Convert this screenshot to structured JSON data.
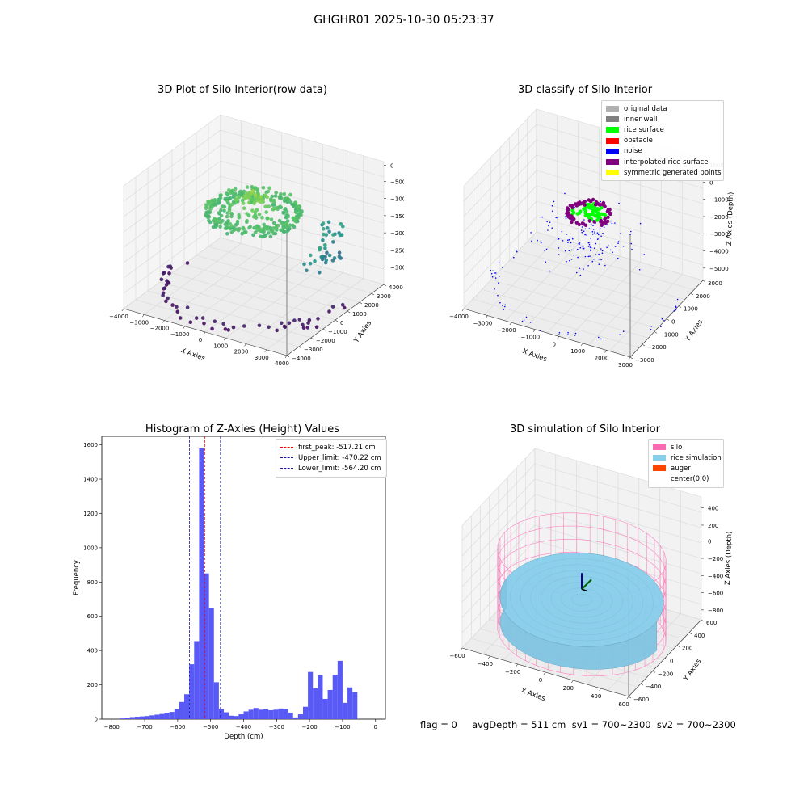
{
  "suptitle": "GHGHR01 2025-10-30 05:23:37",
  "panels": {
    "raw": {
      "title": "3D Plot of Silo Interior(row data)",
      "xlabel": "X Axies",
      "ylabel": "Y Axies",
      "zlabel": "Z Axies (Depth)",
      "x_ticks": [
        "−4000",
        "−3000",
        "−2000",
        "−1000",
        "0",
        "1000",
        "2000",
        "3000",
        "4000"
      ],
      "y_ticks": [
        "−4000",
        "−3000",
        "−2000",
        "−1000",
        "0",
        "1000",
        "2000",
        "3000",
        "4000"
      ],
      "z_ticks": [
        "0",
        "−500",
        "−1000",
        "−1500",
        "−2000",
        "−2500",
        "−3000"
      ]
    },
    "classify": {
      "title": "3D classify of Silo Interior",
      "xlabel": "X Axies",
      "ylabel": "Y Axies",
      "zlabel": "Z Axies (Depth)",
      "x_ticks": [
        "−4000",
        "−3000",
        "−2000",
        "−1000",
        "0",
        "1000",
        "2000",
        "3000"
      ],
      "y_ticks": [
        "−3000",
        "−2000",
        "−1000",
        "0",
        "1000",
        "2000",
        "3000"
      ],
      "z_ticks": [
        "1000",
        "0",
        "−1000",
        "−2000",
        "−3000",
        "−4000",
        "−5000"
      ],
      "legend": [
        {
          "label": "original data",
          "color": "#b0b0b0"
        },
        {
          "label": "inner wall",
          "color": "#808080"
        },
        {
          "label": "rice surface",
          "color": "#00ff00"
        },
        {
          "label": "obstacle",
          "color": "#ff0000"
        },
        {
          "label": "noise",
          "color": "#0000ff"
        },
        {
          "label": "interpolated rice surface",
          "color": "#800080"
        },
        {
          "label": "symmetric generated points",
          "color": "#ffff00"
        }
      ]
    },
    "histogram": {
      "title": "Histogram of Z-Axies (Height) Values",
      "xlabel": "Depth (cm)",
      "ylabel": "Frequency"
    },
    "simulation": {
      "title": "3D simulation of Silo Interior",
      "xlabel": "X Axies",
      "ylabel": "Y Axies",
      "zlabel": "Z Axies (Depth)",
      "x_ticks": [
        "−600",
        "−400",
        "−200",
        "0",
        "200",
        "400",
        "600"
      ],
      "y_ticks": [
        "−600",
        "−400",
        "−200",
        "0",
        "200",
        "400",
        "600"
      ],
      "z_ticks": [
        "400",
        "200",
        "0",
        "−200",
        "−400",
        "−600",
        "−800"
      ],
      "legend": [
        {
          "label": "silo",
          "color": "#ff69b4"
        },
        {
          "label": "rice simulation",
          "color": "#87ceeb"
        },
        {
          "label": "auger",
          "color": "#ff4500"
        },
        {
          "label": "center(0,0)",
          "color": ""
        }
      ]
    }
  },
  "status_text": "flag = 0     avgDepth = 511 cm  sv1 = 700~2300  sv2 = 700~2300",
  "colors": {
    "bar": "#5050f5",
    "first_peak": "#ff0000",
    "limits": "#1a1aa0",
    "viridis": [
      "#440154",
      "#3b528b",
      "#21918c",
      "#5ec962",
      "#fde725"
    ]
  },
  "chart_data": [
    {
      "type": "scatter",
      "title": "3D Plot of Silo Interior(row data)",
      "xlabel": "X Axies",
      "ylabel": "Y Axies",
      "zlabel": "Z Axies (Depth)",
      "xlim": [
        -4000,
        4000
      ],
      "ylim": [
        -4000,
        4000
      ],
      "zlim": [
        -3200,
        0
      ],
      "colormap": "viridis",
      "clusters": [
        {
          "name": "",
          "shape": "ring",
          "cx": 0,
          "cy": 0,
          "r": 4000,
          "z": -3000,
          "count": 95
        },
        {
          "name": "",
          "shape": "ring",
          "cx": 0,
          "cy": 0,
          "r": 2000,
          "z": -1000,
          "count": 220
        },
        {
          "name": "",
          "shape": "disk",
          "cx": 0,
          "cy": 0,
          "r": 1500,
          "z": -500,
          "count": 160
        },
        {
          "name": "",
          "shape": "arc",
          "cx": 0,
          "cy": 0,
          "r": 3600,
          "z": -1700,
          "count": 40
        }
      ]
    },
    {
      "type": "scatter",
      "title": "3D classify of Silo Interior",
      "xlabel": "X Axies",
      "ylabel": "Y Axies",
      "zlabel": "Z Axies (Depth)",
      "xlim": [
        -4000,
        3500
      ],
      "ylim": [
        -3500,
        3500
      ],
      "zlim": [
        -5000,
        1500
      ],
      "series": [
        {
          "name": "noise",
          "shape": "ring",
          "r": 4000,
          "z": -4500,
          "count": 80
        },
        {
          "name": "noise",
          "shape": "scatter",
          "r": 2500,
          "z": -2000,
          "count": 140
        },
        {
          "name": "rice surface",
          "shape": "disk",
          "r": 700,
          "z": -500,
          "count": 60
        },
        {
          "name": "interpolated rice surface",
          "shape": "ring",
          "r": 900,
          "z": -600,
          "count": 70
        }
      ]
    },
    {
      "type": "bar",
      "title": "Histogram of Z-Axies (Height) Values",
      "xlabel": "Depth (cm)",
      "ylabel": "Frequency",
      "xlim": [
        -830,
        30
      ],
      "ylim": [
        0,
        1650
      ],
      "bin_width": 15,
      "x_ticks": [
        -800,
        -700,
        -600,
        -500,
        -400,
        -300,
        -200,
        -100,
        0
      ],
      "y_ticks": [
        0,
        200,
        400,
        600,
        800,
        1000,
        1200,
        1400,
        1600
      ],
      "bin_start": [
        -775,
        -760,
        -745,
        -730,
        -715,
        -700,
        -685,
        -670,
        -655,
        -640,
        -625,
        -610,
        -595,
        -580,
        -565,
        -550,
        -535,
        -520,
        -505,
        -490,
        -475,
        -460,
        -445,
        -430,
        -415,
        -400,
        -385,
        -370,
        -355,
        -340,
        -325,
        -310,
        -295,
        -280,
        -265,
        -250,
        -235,
        -220,
        -205,
        -190,
        -175,
        -160,
        -145,
        -130,
        -115,
        -100,
        -85,
        -70,
        -55,
        -40,
        -25,
        -10
      ],
      "values": [
        4,
        8,
        12,
        14,
        16,
        18,
        22,
        26,
        30,
        36,
        42,
        58,
        100,
        145,
        320,
        455,
        1580,
        850,
        650,
        215,
        60,
        40,
        20,
        18,
        28,
        45,
        55,
        65,
        55,
        58,
        52,
        55,
        62,
        60,
        38,
        10,
        28,
        72,
        275,
        180,
        255,
        118,
        170,
        258,
        340,
        95,
        185,
        158,
        0,
        0,
        0,
        0
      ],
      "lines": [
        {
          "name": "first_peak: -517.21 cm",
          "x": -517.21,
          "color": "#ff0000"
        },
        {
          "name": "Upper_limit: -470.22 cm",
          "x": -470.22,
          "color": "#1a1aa0"
        },
        {
          "name": "Lower_limit: -564.20 cm",
          "x": -564.2,
          "color": "#1a1aa0"
        }
      ]
    },
    {
      "type": "surface",
      "title": "3D simulation of Silo Interior",
      "xlabel": "X Axies",
      "ylabel": "Y Axies",
      "zlabel": "Z Axies (Depth)",
      "xlim": [
        -700,
        700
      ],
      "ylim": [
        -700,
        700
      ],
      "zlim": [
        -900,
        500
      ],
      "silo_radius": 650,
      "silo_top": 0,
      "silo_bottom": -900,
      "rice_surface_depth": -511
    }
  ]
}
